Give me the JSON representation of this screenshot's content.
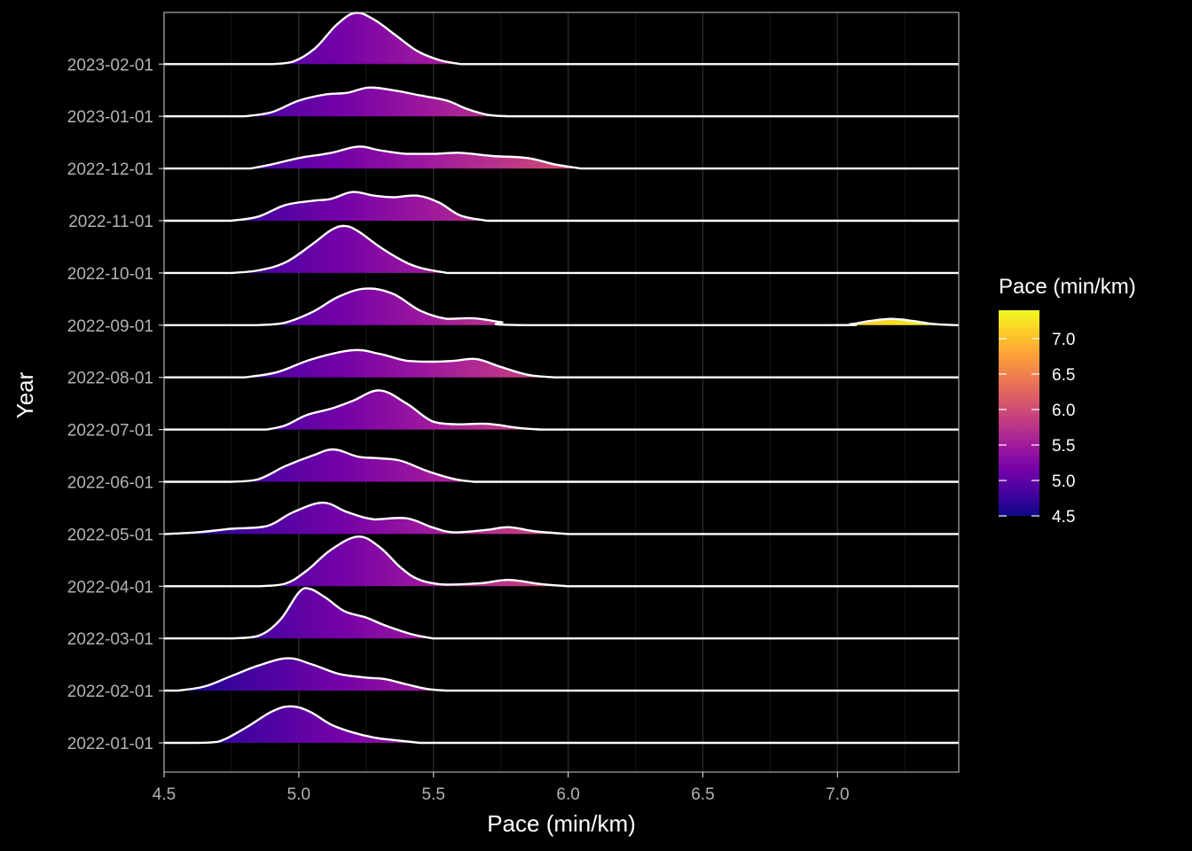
{
  "chart_data": {
    "type": "ridgeline",
    "title": "",
    "xlabel": "Pace (min/km)",
    "ylabel": "Year",
    "xlim": [
      4.5,
      7.45
    ],
    "x_ticks": [
      "4.5",
      "5.0",
      "5.5",
      "6.0",
      "6.5",
      "7.0"
    ],
    "x_tick_values": [
      4.5,
      5.0,
      5.5,
      6.0,
      6.5,
      7.0
    ],
    "grid": true,
    "legend": {
      "title": "Pace (min/km)",
      "position": "right",
      "range": [
        4.5,
        7.4
      ],
      "ticks": [
        "4.5",
        "5.0",
        "5.5",
        "6.0",
        "6.5",
        "7.0"
      ],
      "tick_values": [
        4.5,
        5.0,
        5.5,
        6.0,
        6.5,
        7.0
      ]
    },
    "colormap": [
      "#0d0887",
      "#46039f",
      "#7201a8",
      "#9c179e",
      "#bd3786",
      "#d8576b",
      "#ed7953",
      "#fb9f3a",
      "#fdca26",
      "#f0f921"
    ],
    "background": "#000000",
    "line_color": "#ffffff",
    "series": [
      {
        "name": "2022-01-01",
        "points": [
          [
            4.62,
            0
          ],
          [
            4.7,
            0.02
          ],
          [
            4.8,
            0.28
          ],
          [
            4.9,
            0.6
          ],
          [
            4.97,
            0.7
          ],
          [
            5.04,
            0.6
          ],
          [
            5.12,
            0.35
          ],
          [
            5.2,
            0.2
          ],
          [
            5.28,
            0.1
          ],
          [
            5.36,
            0.05
          ],
          [
            5.45,
            0
          ]
        ]
      },
      {
        "name": "2022-02-01",
        "points": [
          [
            4.55,
            0
          ],
          [
            4.65,
            0.08
          ],
          [
            4.75,
            0.28
          ],
          [
            4.85,
            0.48
          ],
          [
            4.96,
            0.62
          ],
          [
            5.05,
            0.5
          ],
          [
            5.15,
            0.32
          ],
          [
            5.25,
            0.25
          ],
          [
            5.32,
            0.22
          ],
          [
            5.4,
            0.12
          ],
          [
            5.48,
            0.03
          ],
          [
            5.55,
            0
          ]
        ]
      },
      {
        "name": "2022-03-01",
        "points": [
          [
            4.75,
            0
          ],
          [
            4.85,
            0.05
          ],
          [
            4.93,
            0.35
          ],
          [
            5.0,
            0.88
          ],
          [
            5.04,
            0.95
          ],
          [
            5.1,
            0.78
          ],
          [
            5.17,
            0.52
          ],
          [
            5.25,
            0.4
          ],
          [
            5.32,
            0.25
          ],
          [
            5.42,
            0.08
          ],
          [
            5.5,
            0
          ]
        ]
      },
      {
        "name": "2022-04-01",
        "points": [
          [
            4.85,
            0
          ],
          [
            4.95,
            0.05
          ],
          [
            5.03,
            0.3
          ],
          [
            5.12,
            0.7
          ],
          [
            5.22,
            0.95
          ],
          [
            5.3,
            0.75
          ],
          [
            5.38,
            0.35
          ],
          [
            5.45,
            0.12
          ],
          [
            5.55,
            0.03
          ],
          [
            5.68,
            0.06
          ],
          [
            5.78,
            0.12
          ],
          [
            5.9,
            0.04
          ],
          [
            6.0,
            0
          ]
        ]
      },
      {
        "name": "2022-05-01",
        "points": [
          [
            4.5,
            0
          ],
          [
            4.62,
            0.03
          ],
          [
            4.75,
            0.1
          ],
          [
            4.88,
            0.15
          ],
          [
            4.98,
            0.42
          ],
          [
            5.09,
            0.6
          ],
          [
            5.18,
            0.42
          ],
          [
            5.28,
            0.28
          ],
          [
            5.4,
            0.3
          ],
          [
            5.5,
            0.12
          ],
          [
            5.58,
            0.03
          ],
          [
            5.7,
            0.08
          ],
          [
            5.78,
            0.13
          ],
          [
            5.88,
            0.05
          ],
          [
            6.0,
            0
          ]
        ]
      },
      {
        "name": "2022-06-01",
        "points": [
          [
            4.75,
            0
          ],
          [
            4.85,
            0.05
          ],
          [
            4.95,
            0.3
          ],
          [
            5.05,
            0.5
          ],
          [
            5.13,
            0.62
          ],
          [
            5.22,
            0.48
          ],
          [
            5.3,
            0.45
          ],
          [
            5.38,
            0.4
          ],
          [
            5.48,
            0.2
          ],
          [
            5.58,
            0.05
          ],
          [
            5.65,
            0
          ]
        ]
      },
      {
        "name": "2022-07-01",
        "points": [
          [
            4.88,
            0
          ],
          [
            4.95,
            0.08
          ],
          [
            5.03,
            0.28
          ],
          [
            5.12,
            0.4
          ],
          [
            5.2,
            0.55
          ],
          [
            5.3,
            0.75
          ],
          [
            5.4,
            0.5
          ],
          [
            5.5,
            0.15
          ],
          [
            5.6,
            0.1
          ],
          [
            5.7,
            0.11
          ],
          [
            5.82,
            0.03
          ],
          [
            5.9,
            0
          ]
        ]
      },
      {
        "name": "2022-08-01",
        "points": [
          [
            4.8,
            0
          ],
          [
            4.92,
            0.1
          ],
          [
            5.05,
            0.35
          ],
          [
            5.2,
            0.52
          ],
          [
            5.3,
            0.45
          ],
          [
            5.4,
            0.32
          ],
          [
            5.5,
            0.3
          ],
          [
            5.58,
            0.32
          ],
          [
            5.66,
            0.35
          ],
          [
            5.75,
            0.2
          ],
          [
            5.85,
            0.05
          ],
          [
            5.95,
            0
          ]
        ]
      },
      {
        "name": "2022-09-01",
        "points": [
          [
            4.85,
            0
          ],
          [
            4.95,
            0.05
          ],
          [
            5.05,
            0.25
          ],
          [
            5.15,
            0.55
          ],
          [
            5.25,
            0.7
          ],
          [
            5.35,
            0.6
          ],
          [
            5.45,
            0.28
          ],
          [
            5.55,
            0.12
          ],
          [
            5.65,
            0.13
          ],
          [
            5.75,
            0.06
          ],
          [
            5.85,
            0
          ],
          [
            6.95,
            0
          ],
          [
            7.05,
            0.02
          ],
          [
            7.12,
            0.08
          ],
          [
            7.2,
            0.12
          ],
          [
            7.28,
            0.08
          ],
          [
            7.36,
            0.02
          ],
          [
            7.45,
            0
          ]
        ]
      },
      {
        "name": "2022-10-01",
        "points": [
          [
            4.75,
            0
          ],
          [
            4.85,
            0.05
          ],
          [
            4.95,
            0.2
          ],
          [
            5.05,
            0.55
          ],
          [
            5.12,
            0.82
          ],
          [
            5.17,
            0.9
          ],
          [
            5.22,
            0.8
          ],
          [
            5.3,
            0.5
          ],
          [
            5.38,
            0.25
          ],
          [
            5.45,
            0.1
          ],
          [
            5.55,
            0
          ]
        ]
      },
      {
        "name": "2022-11-01",
        "points": [
          [
            4.75,
            0
          ],
          [
            4.85,
            0.08
          ],
          [
            4.95,
            0.3
          ],
          [
            5.05,
            0.38
          ],
          [
            5.12,
            0.42
          ],
          [
            5.2,
            0.55
          ],
          [
            5.28,
            0.48
          ],
          [
            5.35,
            0.45
          ],
          [
            5.44,
            0.48
          ],
          [
            5.52,
            0.35
          ],
          [
            5.6,
            0.1
          ],
          [
            5.7,
            0
          ]
        ]
      },
      {
        "name": "2022-12-01",
        "points": [
          [
            4.82,
            0
          ],
          [
            4.9,
            0.08
          ],
          [
            5.0,
            0.2
          ],
          [
            5.12,
            0.3
          ],
          [
            5.22,
            0.42
          ],
          [
            5.3,
            0.35
          ],
          [
            5.4,
            0.28
          ],
          [
            5.5,
            0.28
          ],
          [
            5.6,
            0.3
          ],
          [
            5.72,
            0.24
          ],
          [
            5.85,
            0.2
          ],
          [
            5.95,
            0.08
          ],
          [
            6.05,
            0
          ]
        ]
      },
      {
        "name": "2023-01-01",
        "points": [
          [
            4.8,
            0
          ],
          [
            4.9,
            0.08
          ],
          [
            5.0,
            0.3
          ],
          [
            5.1,
            0.42
          ],
          [
            5.18,
            0.45
          ],
          [
            5.26,
            0.55
          ],
          [
            5.35,
            0.5
          ],
          [
            5.45,
            0.4
          ],
          [
            5.55,
            0.3
          ],
          [
            5.62,
            0.15
          ],
          [
            5.7,
            0.03
          ],
          [
            5.78,
            0
          ]
        ]
      },
      {
        "name": "2023-02-01",
        "points": [
          [
            4.9,
            0
          ],
          [
            4.98,
            0.05
          ],
          [
            5.06,
            0.3
          ],
          [
            5.14,
            0.75
          ],
          [
            5.21,
            0.98
          ],
          [
            5.28,
            0.85
          ],
          [
            5.36,
            0.55
          ],
          [
            5.44,
            0.25
          ],
          [
            5.52,
            0.08
          ],
          [
            5.6,
            0
          ]
        ]
      }
    ]
  }
}
